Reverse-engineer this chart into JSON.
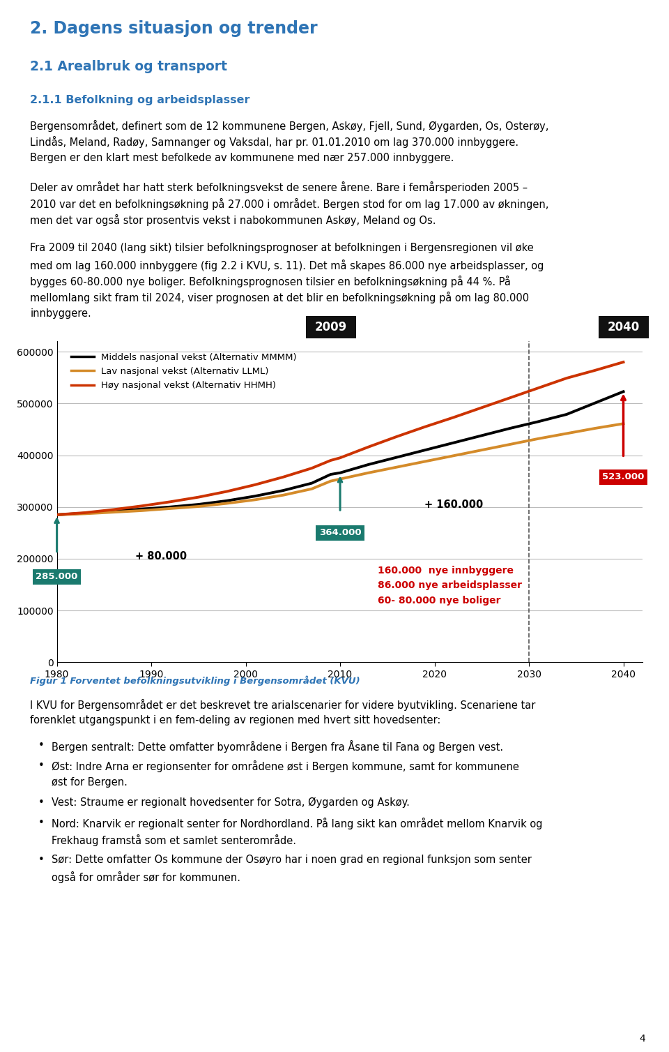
{
  "page_bg": "#ffffff",
  "heading1": "2. Dagens situasjon og trender",
  "heading2": "2.1 Arealbruk og transport",
  "heading3": "2.1.1 Befolkning og arbeidsplasser",
  "para1_lines": [
    "Bergensområdet, definert som de 12 kommunene Bergen, Askøy, Fjell, Sund, Øygarden, Os, Osterøy,",
    "Lindås, Meland, Radøy, Samnanger og Vaksdal, har pr. 01.01.2010 om lag 370.000 innbyggere.",
    "Bergen er den klart mest befolkede av kommunene med nær 257.000 innbyggere."
  ],
  "para2_lines": [
    "Deler av området har hatt sterk befolkningsvekst de senere årene. Bare i femårsperioden 2005 –",
    "2010 var det en befolkningsøkning på 27.000 i området. Bergen stod for om lag 17.000 av økningen,",
    "men det var også stor prosentvis vekst i nabokommunen Askøy, Meland og Os."
  ],
  "para3_lines": [
    "Fra 2009 til 2040 (lang sikt) tilsier befolkningsprognoser at befolkningen i Bergensregionen vil øke",
    "med om lag 160.000 innbyggere (fig 2.2 i KVU, s. 11). Det må skapes 86.000 nye arbeidsplasser, og",
    "bygges 60-80.000 nye boliger. Befolkningsprognosen tilsier en befolkningsøkning på 44 %. På",
    "mellomlang sikt fram til 2024, viser prognosen at det blir en befolkningsøkning på om lag 80.000",
    "innbyggere."
  ],
  "fig_caption": "Figur 1 Forventet befolkningsutvikling i Bergensområdet (KVU)",
  "para_after1_lines": [
    "I KVU for Bergensområdet er det beskrevet tre arialscenarier for videre byutvikling. Scenariene tar",
    "forenklet utgangspunkt i en fem-deling av regionen med hvert sitt hovedsenter:"
  ],
  "bullet1": "Bergen sentralt: Dette omfatter byområdene i Bergen fra Åsane til Fana og Bergen vest.",
  "bullet2_lines": [
    "Øst: Indre Arna er regionsenter for områdene øst i Bergen kommune, samt for kommunene",
    "øst for Bergen."
  ],
  "bullet3": "Vest: Straume er regionalt hovedsenter for Sotra, Øygarden og Askøy.",
  "bullet4_lines": [
    "Nord: Knarvik er regionalt senter for Nordhordland. På lang sikt kan området mellom Knarvik og",
    "Frekhaug framstå som et samlet senterområde."
  ],
  "bullet5_lines": [
    "Sør: Dette omfatter Os kommune der Osøyro har i noen grad en regional funksjon som senter",
    "også for områder sør for kommunen."
  ],
  "heading_color": "#2e74b5",
  "heading3_color": "#2e74b5",
  "fig_caption_color": "#2e74b5",
  "years": [
    1980,
    1983,
    1986,
    1989,
    1992,
    1995,
    1998,
    2001,
    2004,
    2007,
    2009,
    2010,
    2013,
    2016,
    2019,
    2022,
    2025,
    2028,
    2031,
    2034,
    2037,
    2040
  ],
  "middels": [
    285000,
    288000,
    292000,
    296000,
    300000,
    305000,
    312000,
    321000,
    332000,
    346000,
    363000,
    366000,
    382000,
    396000,
    410000,
    424000,
    438000,
    452000,
    465000,
    479000,
    501000,
    523000
  ],
  "lav": [
    285000,
    287000,
    290000,
    293000,
    297000,
    301000,
    307000,
    314000,
    323000,
    335000,
    350000,
    354000,
    366000,
    377000,
    388000,
    399000,
    410000,
    421000,
    432000,
    442000,
    452000,
    461000
  ],
  "hoy": [
    285000,
    289000,
    295000,
    302000,
    310000,
    319000,
    330000,
    343000,
    358000,
    375000,
    390000,
    395000,
    416000,
    436000,
    455000,
    473000,
    492000,
    511000,
    530000,
    549000,
    564000,
    580000
  ],
  "middels_color": "#000000",
  "lav_color": "#d48b2a",
  "hoy_color": "#cc3300",
  "legend_middels": "Middels nasjonal vekst (Alternativ MMMM)",
  "legend_lav": "Lav nasjonal vekst (Alternativ LLML)",
  "legend_hoy": "Høy nasjonal vekst (Alternativ HHMH)",
  "anno_teal": "#1a7a6e",
  "anno_red_bg": "#cc0000",
  "dashed_line_x": 2030,
  "label_2009": "2009",
  "label_2040": "2040",
  "ylim": [
    0,
    620000
  ],
  "xlim": [
    1980,
    2042
  ],
  "yticks": [
    0,
    100000,
    200000,
    300000,
    400000,
    500000,
    600000
  ],
  "xticks": [
    1980,
    1990,
    2000,
    2010,
    2020,
    2030,
    2040
  ]
}
